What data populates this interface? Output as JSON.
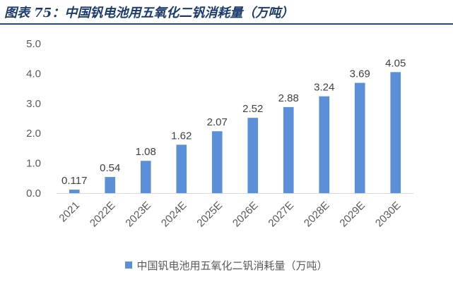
{
  "page": {
    "figure_title": "图表 75：中国钒电池用五氧化二钒消耗量（万吨）"
  },
  "colors": {
    "bar": "#5b8fd8",
    "title": "#1d3c6e",
    "rule": "#1f4e8c"
  },
  "chart_data": {
    "type": "bar",
    "categories": [
      "2021",
      "2022E",
      "2023E",
      "2024E",
      "2025E",
      "2026E",
      "2027E",
      "2028E",
      "2029E",
      "2030E"
    ],
    "series": [
      {
        "name": "中国钒电池用五氧化二钒消耗量（万吨）",
        "values": [
          0.117,
          0.54,
          1.08,
          1.62,
          2.07,
          2.52,
          2.88,
          3.24,
          3.69,
          4.05
        ],
        "labels": [
          "0.117",
          "0.54",
          "1.08",
          "1.62",
          "2.07",
          "2.52",
          "2.88",
          "3.24",
          "3.69",
          "4.05"
        ]
      }
    ],
    "yticks": [
      "0.0",
      "1.0",
      "2.0",
      "3.0",
      "4.0",
      "5.0"
    ],
    "ylim": [
      0,
      5
    ],
    "grid": false,
    "legend_position": "bottom",
    "title": "",
    "xlabel": "",
    "ylabel": ""
  }
}
